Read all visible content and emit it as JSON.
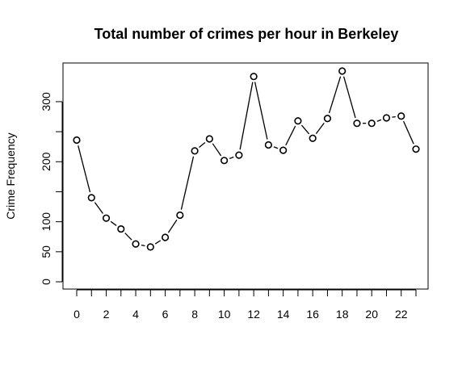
{
  "chart_data": {
    "type": "line",
    "title": "Total number of crimes per hour in Berkeley",
    "xlabel": "",
    "ylabel": "Crime Frequency",
    "x": [
      0,
      1,
      2,
      3,
      4,
      5,
      6,
      7,
      8,
      9,
      10,
      11,
      12,
      13,
      14,
      15,
      16,
      17,
      18,
      19,
      20,
      21,
      22,
      23
    ],
    "values": [
      236,
      140,
      106,
      88,
      63,
      58,
      74,
      111,
      218,
      238,
      202,
      211,
      342,
      228,
      219,
      268,
      239,
      272,
      351,
      264,
      264,
      273,
      276,
      221
    ],
    "xlim": [
      0,
      23
    ],
    "ylim": [
      0,
      351
    ],
    "x_ticks": [
      0,
      1,
      2,
      3,
      4,
      5,
      6,
      7,
      8,
      9,
      10,
      11,
      12,
      13,
      14,
      15,
      16,
      17,
      18,
      19,
      20,
      21,
      22,
      23
    ],
    "x_tick_labels": [
      "0",
      "",
      "2",
      "",
      "4",
      "",
      "6",
      "",
      "8",
      "",
      "10",
      "",
      "12",
      "",
      "14",
      "",
      "16",
      "",
      "18",
      "",
      "20",
      "",
      "22",
      ""
    ],
    "y_ticks": [
      0,
      50,
      100,
      150,
      200,
      250,
      300
    ],
    "y_tick_labels": [
      "0",
      "50",
      "100",
      "",
      "200",
      "",
      "300"
    ],
    "grid": false,
    "legend": "none",
    "marker": "open-circle",
    "line_style": "lines-with-gaps-at-points",
    "colors": {
      "line": "#000000",
      "marker_fill": "#ffffff",
      "background": "#ffffff"
    }
  }
}
